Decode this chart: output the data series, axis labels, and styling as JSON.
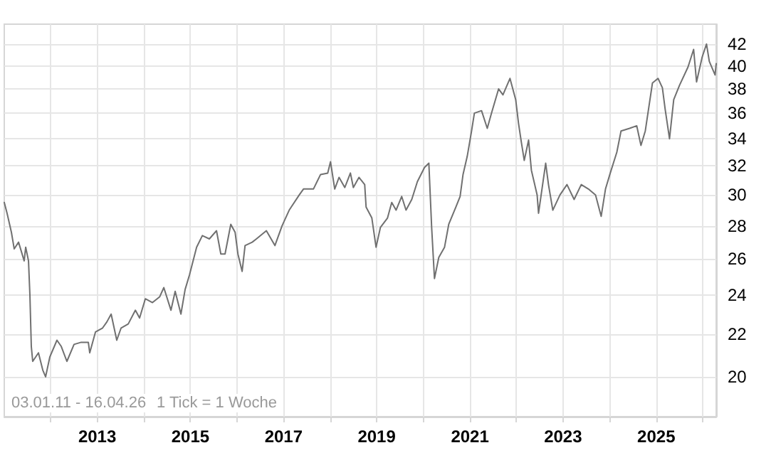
{
  "chart_data": {
    "type": "line",
    "color": "#707070",
    "log": "y",
    "grid": true,
    "marker": "none",
    "line_style": "solid",
    "xlim": [
      "2011-01-03",
      "2026-04-16"
    ],
    "xticks": [
      {
        "value": "2012",
        "label": null
      },
      {
        "value": "2013",
        "label": "2013"
      },
      {
        "value": "2014",
        "label": null
      },
      {
        "value": "2015",
        "label": "2015"
      },
      {
        "value": "2016",
        "label": null
      },
      {
        "value": "2017",
        "label": "2017"
      },
      {
        "value": "2018",
        "label": null
      },
      {
        "value": "2019",
        "label": "2019"
      },
      {
        "value": "2020",
        "label": null
      },
      {
        "value": "2021",
        "label": "2021"
      },
      {
        "value": "2022",
        "label": null
      },
      {
        "value": "2023",
        "label": "2023"
      },
      {
        "value": "2024",
        "label": null
      },
      {
        "value": "2025",
        "label": "2025"
      },
      {
        "value": "2026",
        "label": null
      }
    ],
    "ylim": [
      18.3,
      43.9
    ],
    "yticks": [
      20,
      22,
      24,
      26,
      28,
      30,
      32,
      34,
      36,
      38,
      40,
      42
    ],
    "annotations": [
      "03.01.11 - 16.04.26",
      "1 Tick = 1 Woche"
    ],
    "x": [
      "2011-01-03",
      "2011-01-25",
      "2011-02-28",
      "2011-03-22",
      "2011-04-25",
      "2011-06-08",
      "2011-06-20",
      "2011-07-12",
      "2011-07-23",
      "2011-08-03",
      "2011-08-14",
      "2011-09-28",
      "2011-11-01",
      "2011-11-23",
      "2011-12-26",
      "2012-02-20",
      "2012-03-25",
      "2012-05-08",
      "2012-07-03",
      "2012-08-28",
      "2012-10-23",
      "2012-11-03",
      "2012-12-18",
      "2013-02-12",
      "2013-03-17",
      "2013-04-20",
      "2013-06-03",
      "2013-07-07",
      "2013-09-01",
      "2013-10-27",
      "2013-11-29",
      "2014-01-13",
      "2014-03-10",
      "2014-05-05",
      "2014-06-07",
      "2014-08-02",
      "2014-09-04",
      "2014-10-19",
      "2014-11-21",
      "2014-12-25",
      "2015-02-19",
      "2015-04-05",
      "2015-05-30",
      "2015-07-25",
      "2015-08-28",
      "2015-09-30",
      "2015-11-14",
      "2015-12-18",
      "2016-01-09",
      "2016-02-11",
      "2016-03-05",
      "2016-04-30",
      "2016-06-02",
      "2016-08-19",
      "2016-10-25",
      "2016-12-20",
      "2017-02-14",
      "2017-05-04",
      "2017-06-06",
      "2017-08-23",
      "2017-10-18",
      "2017-12-13",
      "2018-01-04",
      "2018-02-06",
      "2018-03-12",
      "2018-04-26",
      "2018-06-09",
      "2018-07-02",
      "2018-08-15",
      "2018-09-29",
      "2018-10-10",
      "2018-11-24",
      "2018-12-27",
      "2019-01-30",
      "2019-03-27",
      "2019-04-29",
      "2019-06-02",
      "2019-07-16",
      "2019-08-19",
      "2019-10-03",
      "2019-11-16",
      "2020-01-11",
      "2020-02-14",
      "2020-03-07",
      "2020-03-29",
      "2020-05-02",
      "2020-06-16",
      "2020-07-19",
      "2020-09-13",
      "2020-10-16",
      "2020-11-08",
      "2020-12-11",
      "2021-01-14",
      "2021-02-05",
      "2021-04-02",
      "2021-05-17",
      "2021-06-19",
      "2021-08-14",
      "2021-09-17",
      "2021-11-11",
      "2021-12-26",
      "2022-01-17",
      "2022-02-09",
      "2022-03-03",
      "2022-04-06",
      "2022-04-28",
      "2022-06-12",
      "2022-06-23",
      "2022-08-18",
      "2022-09-09",
      "2022-10-13",
      "2022-12-08",
      "2023-02-01",
      "2023-03-29",
      "2023-05-24",
      "2023-07-19",
      "2023-09-13",
      "2023-10-27",
      "2023-11-30",
      "2024-01-03",
      "2024-02-27",
      "2024-03-31",
      "2024-06-06",
      "2024-08-01",
      "2024-09-03",
      "2024-10-07",
      "2024-12-02",
      "2025-01-15",
      "2025-02-18",
      "2025-03-12",
      "2025-04-15",
      "2025-05-18",
      "2025-07-02",
      "2025-09-07",
      "2025-10-21",
      "2025-11-13",
      "2025-12-27",
      "2026-01-30",
      "2026-02-21",
      "2026-04-07",
      "2026-04-16"
    ],
    "values": [
      29.5,
      28.8,
      27.6,
      26.6,
      27.0,
      25.9,
      26.7,
      25.9,
      24.0,
      21.4,
      20.7,
      21.1,
      20.3,
      20.0,
      20.9,
      21.7,
      21.4,
      20.7,
      21.5,
      21.6,
      21.6,
      21.1,
      22.1,
      22.3,
      22.6,
      23.0,
      21.7,
      22.3,
      22.5,
      23.2,
      22.8,
      23.8,
      23.6,
      23.9,
      24.4,
      23.2,
      24.2,
      23.0,
      24.3,
      25.1,
      26.7,
      27.4,
      27.2,
      27.7,
      26.3,
      26.3,
      28.1,
      27.6,
      26.3,
      25.3,
      26.8,
      27.0,
      27.2,
      27.7,
      26.8,
      28.0,
      29.0,
      30.0,
      30.4,
      30.4,
      31.4,
      31.5,
      32.3,
      30.4,
      31.2,
      30.5,
      31.5,
      30.5,
      31.2,
      30.7,
      29.2,
      28.5,
      26.7,
      27.9,
      28.5,
      29.5,
      29.0,
      29.9,
      29.0,
      29.7,
      30.9,
      31.9,
      32.2,
      27.9,
      24.9,
      26.1,
      26.7,
      28.1,
      29.2,
      29.9,
      31.4,
      32.7,
      34.6,
      36.0,
      36.2,
      34.8,
      36.0,
      38.0,
      37.5,
      38.9,
      37.1,
      35.2,
      33.7,
      32.4,
      33.9,
      31.7,
      30.0,
      28.8,
      32.2,
      30.7,
      29.0,
      30.0,
      30.7,
      29.7,
      30.7,
      30.4,
      30.0,
      28.6,
      30.4,
      31.4,
      33.0,
      34.6,
      34.8,
      35.0,
      33.5,
      34.6,
      38.5,
      38.9,
      38.1,
      36.3,
      34.0,
      37.1,
      38.3,
      39.9,
      41.5,
      38.6,
      40.8,
      42.0,
      40.4,
      39.2,
      40.2
    ]
  }
}
